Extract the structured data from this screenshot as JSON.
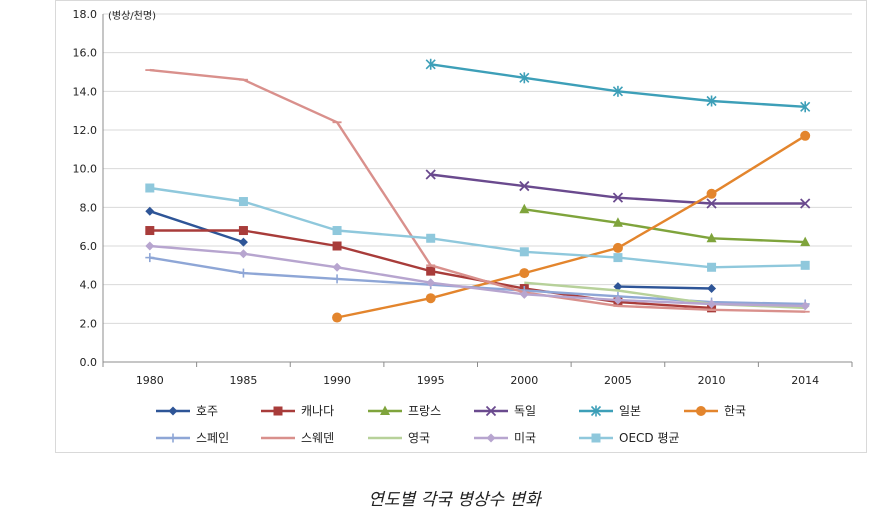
{
  "chart_data": {
    "type": "line",
    "title": "",
    "xlabel": "",
    "ylabel": "(병상/천명)",
    "ylim": [
      0,
      18
    ],
    "yticks": [
      "0.0",
      "2.0",
      "4.0",
      "6.0",
      "8.0",
      "10.0",
      "12.0",
      "14.0",
      "16.0",
      "18.0"
    ],
    "categories": [
      "1980",
      "1985",
      "1990",
      "1995",
      "2000",
      "2005",
      "2010",
      "2014"
    ],
    "grid": "horizontal",
    "legend_position": "bottom",
    "series": [
      {
        "name": "호주",
        "color": "#2e5597",
        "marker": "diamond",
        "values": [
          7.8,
          6.2,
          null,
          null,
          null,
          3.9,
          3.8,
          null
        ]
      },
      {
        "name": "캐나다",
        "color": "#a83c3a",
        "marker": "square",
        "values": [
          6.8,
          6.8,
          6.0,
          4.7,
          3.8,
          3.1,
          2.8,
          null
        ]
      },
      {
        "name": "프랑스",
        "color": "#7fa43c",
        "marker": "triangle",
        "values": [
          null,
          null,
          null,
          null,
          7.9,
          7.2,
          6.4,
          6.2
        ]
      },
      {
        "name": "독일",
        "color": "#6a4a8e",
        "marker": "x",
        "values": [
          null,
          null,
          null,
          9.7,
          9.1,
          8.5,
          8.2,
          8.2
        ]
      },
      {
        "name": "일본",
        "color": "#3d9fb8",
        "marker": "star",
        "values": [
          null,
          null,
          null,
          15.4,
          14.7,
          14.0,
          13.5,
          13.2
        ]
      },
      {
        "name": "한국",
        "color": "#e3852d",
        "marker": "circle",
        "values": [
          null,
          null,
          2.3,
          3.3,
          4.6,
          5.9,
          8.7,
          11.7
        ]
      },
      {
        "name": "스페인",
        "color": "#8ea6d6",
        "marker": "plus",
        "values": [
          5.4,
          4.6,
          4.3,
          4.0,
          3.7,
          3.4,
          3.1,
          3.0
        ]
      },
      {
        "name": "스웨덴",
        "color": "#d9908c",
        "marker": "dash",
        "values": [
          15.1,
          14.6,
          12.4,
          5.0,
          3.6,
          2.9,
          2.7,
          2.6
        ]
      },
      {
        "name": "영국",
        "color": "#b7d19a",
        "marker": "none",
        "values": [
          null,
          null,
          null,
          null,
          4.1,
          3.7,
          3.0,
          2.8
        ]
      },
      {
        "name": "미국",
        "color": "#b7a5cf",
        "marker": "diamond",
        "values": [
          6.0,
          5.6,
          4.9,
          4.1,
          3.5,
          3.2,
          3.0,
          2.9
        ]
      },
      {
        "name": "OECD 평균",
        "color": "#8fc8dc",
        "marker": "square",
        "values": [
          9.0,
          8.3,
          6.8,
          6.4,
          5.7,
          5.4,
          4.9,
          5.0
        ]
      }
    ]
  },
  "caption": "연도별 각국 병상수 변화"
}
